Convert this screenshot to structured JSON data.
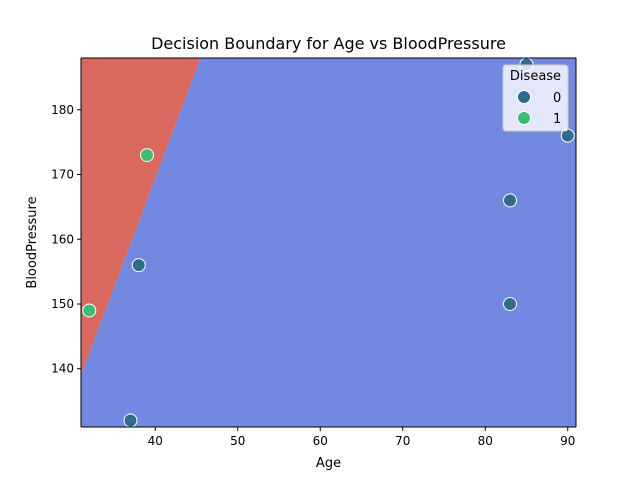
{
  "chart_data": {
    "type": "scatter",
    "title": "Decision Boundary for Age vs BloodPressure",
    "xlabel": "Age",
    "ylabel": "BloodPressure",
    "xlim": [
      31,
      91
    ],
    "ylim": [
      131,
      188
    ],
    "x_ticks": [
      40,
      50,
      60,
      70,
      80,
      90
    ],
    "y_ticks": [
      140,
      150,
      160,
      170,
      180
    ],
    "grid": false,
    "legend": {
      "title": "Disease",
      "placement": "top-right",
      "entries": [
        {
          "label": "0",
          "color": "#2e6b8e"
        },
        {
          "label": "1",
          "color": "#3dbc74"
        }
      ]
    },
    "regions": [
      {
        "class": "1",
        "color": "#d9685f"
      },
      {
        "class": "0",
        "color": "#7389e1"
      }
    ],
    "boundary": [
      [
        31,
        139
      ],
      [
        45.5,
        188
      ]
    ],
    "series": [
      {
        "name": "0",
        "color": "#2e6b8e",
        "points": [
          {
            "x": 85,
            "y": 187
          },
          {
            "x": 90,
            "y": 176
          },
          {
            "x": 83,
            "y": 166
          },
          {
            "x": 38,
            "y": 156
          },
          {
            "x": 83,
            "y": 150
          },
          {
            "x": 37,
            "y": 132
          }
        ]
      },
      {
        "name": "1",
        "color": "#3dbc74",
        "points": [
          {
            "x": 39,
            "y": 173
          },
          {
            "x": 32,
            "y": 149
          }
        ]
      }
    ]
  }
}
